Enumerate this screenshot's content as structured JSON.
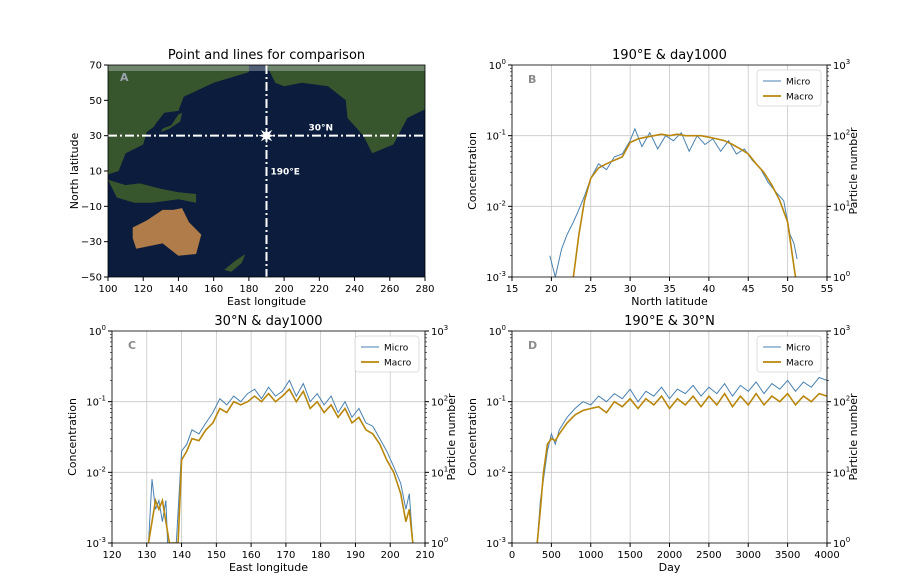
{
  "colors": {
    "micro": "#4a81b0",
    "macro": "#b8860b",
    "grid": "#c8c8c8",
    "map_ocean": "#0b1c3d",
    "map_land": "#3b5a2c",
    "map_desert": "#b9824a",
    "map_ice": "#d8dde2",
    "marker": "#ffffff"
  },
  "chart_data": [
    {
      "id": "A",
      "type": "map",
      "panel_letter": "A",
      "title": "Point and lines for comparison",
      "xlabel": "East longitude",
      "ylabel": "North latitude",
      "xlim": [
        100,
        280
      ],
      "ylim": [
        -50,
        70
      ],
      "xticks": [
        100,
        120,
        140,
        160,
        180,
        200,
        220,
        240,
        260,
        280
      ],
      "yticks": [
        -50,
        -30,
        -10,
        10,
        30,
        50,
        70
      ],
      "vertical_line": {
        "x": 190,
        "label": "190°E"
      },
      "horizontal_line": {
        "y": 30,
        "label": "30°N"
      },
      "point": {
        "x": 190,
        "y": 30
      }
    },
    {
      "id": "B",
      "type": "line",
      "panel_letter": "B",
      "title": "190°E & day1000",
      "xlabel": "North latitude",
      "ylabel": "Concentration",
      "ylabel_right": "Particle number",
      "xlim": [
        15,
        55
      ],
      "ylim": [
        0.001,
        1
      ],
      "yscale": "log",
      "xticks": [
        15,
        20,
        25,
        30,
        35,
        40,
        45,
        50,
        55
      ],
      "yticks": [
        "10^-3",
        "10^-2",
        "10^-1",
        "10^0"
      ],
      "yticks_right": [
        "10^0",
        "10^1",
        "10^2",
        "10^3"
      ],
      "grid": true,
      "legend": "top-right",
      "series": [
        {
          "name": "Micro",
          "x": [
            19.8,
            20.5,
            21.3,
            22.0,
            22.8,
            23.5,
            24.2,
            25.0,
            26.0,
            27.0,
            28.0,
            29.0,
            30.0,
            30.6,
            31.5,
            32.5,
            33.5,
            34.5,
            35.5,
            36.5,
            37.5,
            38.5,
            39.5,
            40.5,
            41.5,
            42.5,
            43.5,
            44.5,
            45.5,
            46.5,
            47.5,
            48.5,
            49.5,
            50.3,
            50.8,
            51.2
          ],
          "y": [
            0.002,
            0.001,
            0.0025,
            0.004,
            0.006,
            0.009,
            0.014,
            0.025,
            0.04,
            0.033,
            0.05,
            0.055,
            0.085,
            0.125,
            0.07,
            0.11,
            0.065,
            0.1,
            0.085,
            0.11,
            0.06,
            0.1,
            0.075,
            0.09,
            0.06,
            0.085,
            0.055,
            0.065,
            0.045,
            0.035,
            0.022,
            0.016,
            0.012,
            0.004,
            0.003,
            0.0018
          ]
        },
        {
          "name": "Macro",
          "x": [
            22.8,
            23.5,
            24.2,
            25.0,
            26.0,
            27.0,
            28.0,
            29.0,
            30.0,
            31.0,
            32.0,
            33.0,
            34.0,
            35.0,
            36.0,
            37.0,
            38.0,
            39.0,
            40.0,
            41.0,
            42.0,
            43.0,
            44.0,
            45.0,
            46.0,
            47.0,
            48.0,
            49.0,
            50.0,
            50.6,
            51.0
          ],
          "y": [
            0.001,
            0.004,
            0.012,
            0.025,
            0.035,
            0.04,
            0.045,
            0.05,
            0.08,
            0.09,
            0.095,
            0.1,
            0.105,
            0.1,
            0.105,
            0.1,
            0.1,
            0.1,
            0.095,
            0.09,
            0.085,
            0.075,
            0.065,
            0.055,
            0.04,
            0.03,
            0.02,
            0.012,
            0.006,
            0.002,
            0.001
          ]
        }
      ]
    },
    {
      "id": "C",
      "type": "line",
      "panel_letter": "C",
      "title": "30°N & day1000",
      "xlabel": "East longitude",
      "ylabel": "Concentration",
      "ylabel_right": "Particle number",
      "xlim": [
        120,
        210
      ],
      "ylim": [
        0.001,
        1
      ],
      "yscale": "log",
      "xticks": [
        120,
        130,
        140,
        150,
        160,
        170,
        180,
        190,
        200,
        210
      ],
      "yticks": [
        "10^-3",
        "10^-2",
        "10^-1",
        "10^0"
      ],
      "yticks_right": [
        "10^0",
        "10^1",
        "10^2",
        "10^3"
      ],
      "grid": true,
      "legend": "top-right",
      "series": [
        {
          "name": "Micro",
          "x": [
            130.5,
            131.5,
            132.5,
            133.5,
            134.5,
            135.5,
            136.0,
            137.5,
            138.5,
            140.0,
            141.5,
            143.0,
            145.0,
            147.0,
            149.0,
            151.0,
            153.0,
            155.0,
            157.0,
            159.0,
            161.0,
            163.0,
            165.0,
            167.0,
            169.0,
            171.0,
            173.0,
            175.0,
            177.0,
            179.0,
            181.0,
            183.0,
            185.0,
            187.0,
            189.0,
            191.0,
            193.0,
            195.0,
            197.0,
            199.0,
            201.0,
            203.0,
            204.5,
            205.5,
            206.5
          ],
          "y": [
            0.001,
            0.008,
            0.003,
            0.004,
            0.002,
            0.004,
            0.001,
            0.001,
            0.001,
            0.02,
            0.025,
            0.04,
            0.035,
            0.05,
            0.07,
            0.11,
            0.09,
            0.12,
            0.1,
            0.13,
            0.15,
            0.11,
            0.16,
            0.12,
            0.14,
            0.2,
            0.12,
            0.18,
            0.1,
            0.13,
            0.09,
            0.12,
            0.07,
            0.1,
            0.06,
            0.08,
            0.05,
            0.045,
            0.03,
            0.02,
            0.012,
            0.007,
            0.003,
            0.005,
            0.001
          ]
        },
        {
          "name": "Macro",
          "x": [
            130.5,
            131.5,
            132.5,
            133.5,
            134.5,
            135.5,
            136.5,
            137.5,
            139.0,
            140.0,
            141.5,
            143.0,
            145.0,
            147.0,
            149.0,
            151.0,
            153.0,
            155.0,
            157.0,
            159.0,
            161.0,
            163.0,
            165.0,
            167.0,
            169.0,
            171.0,
            173.0,
            175.0,
            177.0,
            179.0,
            181.0,
            183.0,
            185.0,
            187.0,
            189.0,
            191.0,
            193.0,
            195.0,
            197.0,
            199.0,
            201.0,
            203.0,
            204.5,
            205.5,
            206.5
          ],
          "y": [
            0.001,
            0.002,
            0.004,
            0.003,
            0.004,
            0.002,
            0.001,
            0.001,
            0.001,
            0.015,
            0.02,
            0.03,
            0.028,
            0.04,
            0.05,
            0.08,
            0.07,
            0.1,
            0.09,
            0.1,
            0.12,
            0.1,
            0.13,
            0.1,
            0.12,
            0.15,
            0.1,
            0.14,
            0.08,
            0.1,
            0.07,
            0.09,
            0.06,
            0.08,
            0.05,
            0.06,
            0.04,
            0.035,
            0.025,
            0.015,
            0.01,
            0.005,
            0.002,
            0.003,
            0.001
          ]
        }
      ]
    },
    {
      "id": "D",
      "type": "line",
      "panel_letter": "D",
      "title": "190°E & 30°N",
      "xlabel": "Day",
      "ylabel": "Concentration",
      "ylabel_right": "Particle number",
      "xlim": [
        0,
        4000
      ],
      "ylim": [
        0.001,
        1
      ],
      "yscale": "log",
      "xticks": [
        0,
        500,
        1000,
        1500,
        2000,
        2500,
        3000,
        3500,
        4000
      ],
      "yticks": [
        "10^-3",
        "10^-2",
        "10^-1",
        "10^0"
      ],
      "yticks_right": [
        "10^0",
        "10^1",
        "10^2",
        "10^3"
      ],
      "grid": true,
      "legend": "top-right",
      "series": [
        {
          "name": "Micro",
          "x": [
            320,
            360,
            400,
            450,
            500,
            550,
            600,
            700,
            800,
            900,
            1000,
            1100,
            1200,
            1300,
            1400,
            1500,
            1600,
            1700,
            1800,
            1900,
            2000,
            2100,
            2200,
            2300,
            2400,
            2500,
            2600,
            2700,
            2800,
            2900,
            3000,
            3100,
            3200,
            3300,
            3400,
            3500,
            3600,
            3700,
            3800,
            3900,
            4000
          ],
          "y": [
            0.001,
            0.004,
            0.008,
            0.02,
            0.035,
            0.025,
            0.04,
            0.06,
            0.08,
            0.1,
            0.09,
            0.12,
            0.1,
            0.13,
            0.11,
            0.15,
            0.1,
            0.14,
            0.12,
            0.16,
            0.11,
            0.15,
            0.13,
            0.17,
            0.12,
            0.16,
            0.13,
            0.18,
            0.12,
            0.17,
            0.14,
            0.19,
            0.13,
            0.18,
            0.15,
            0.2,
            0.14,
            0.19,
            0.16,
            0.22,
            0.2
          ]
        },
        {
          "name": "Macro",
          "x": [
            320,
            360,
            400,
            450,
            500,
            550,
            600,
            700,
            800,
            900,
            1000,
            1100,
            1200,
            1300,
            1400,
            1500,
            1600,
            1700,
            1800,
            1900,
            2000,
            2100,
            2200,
            2300,
            2400,
            2500,
            2600,
            2700,
            2800,
            2900,
            3000,
            3100,
            3200,
            3300,
            3400,
            3500,
            3600,
            3700,
            3800,
            3900,
            4000
          ],
          "y": [
            0.001,
            0.003,
            0.01,
            0.025,
            0.03,
            0.028,
            0.035,
            0.05,
            0.065,
            0.075,
            0.08,
            0.085,
            0.07,
            0.1,
            0.085,
            0.11,
            0.08,
            0.11,
            0.09,
            0.12,
            0.08,
            0.11,
            0.09,
            0.12,
            0.085,
            0.12,
            0.09,
            0.13,
            0.085,
            0.12,
            0.09,
            0.13,
            0.09,
            0.12,
            0.1,
            0.13,
            0.09,
            0.12,
            0.1,
            0.13,
            0.12
          ]
        }
      ]
    }
  ]
}
